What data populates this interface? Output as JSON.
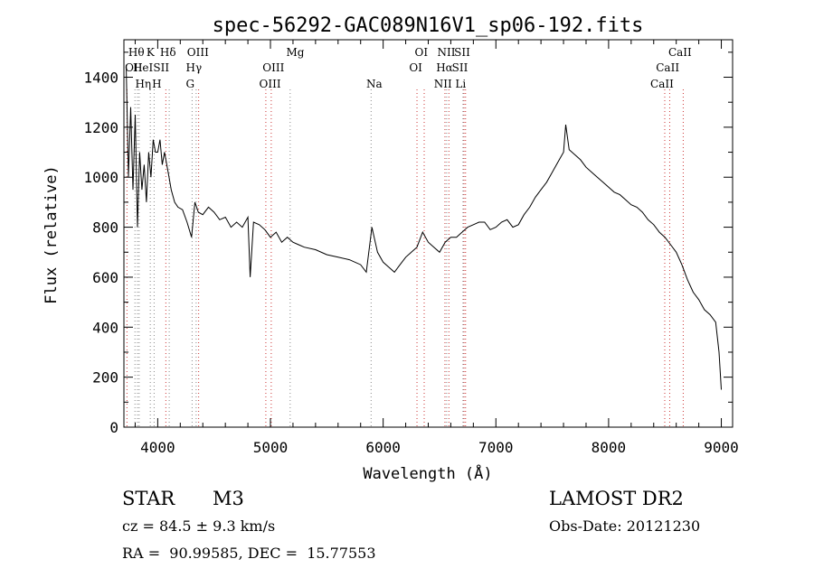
{
  "chart_data": {
    "type": "line",
    "title": "spec-56292-GAC089N16V1_sp06-192.fits",
    "xlabel": "Wavelength (Å)",
    "ylabel": "Flux (relative)",
    "xlim": [
      3700,
      9100
    ],
    "ylim": [
      0,
      1550
    ],
    "xticks": [
      4000,
      5000,
      6000,
      7000,
      8000,
      9000
    ],
    "yticks": [
      0,
      200,
      400,
      600,
      800,
      1000,
      1200,
      1400
    ],
    "grid": false,
    "line_color": "#000000",
    "series": [
      {
        "x": [
          3720,
          3740,
          3760,
          3780,
          3800,
          3820,
          3840,
          3860,
          3880,
          3900,
          3920,
          3940,
          3960,
          3980,
          4000,
          4020,
          4040,
          4060,
          4080,
          4100,
          4120,
          4150,
          4180,
          4220,
          4260,
          4300,
          4330,
          4360,
          4400,
          4450,
          4500,
          4550,
          4600,
          4650,
          4700,
          4750,
          4800,
          4820,
          4850,
          4900,
          4950,
          5000,
          5050,
          5100,
          5150,
          5200,
          5250,
          5300,
          5400,
          5500,
          5600,
          5700,
          5800,
          5850,
          5900,
          5950,
          6000,
          6050,
          6100,
          6150,
          6200,
          6250,
          6300,
          6350,
          6400,
          6450,
          6500,
          6550,
          6600,
          6650,
          6700,
          6750,
          6800,
          6850,
          6900,
          6950,
          7000,
          7050,
          7100,
          7150,
          7200,
          7250,
          7300,
          7350,
          7400,
          7450,
          7500,
          7550,
          7600,
          7620,
          7650,
          7700,
          7750,
          7800,
          7850,
          7900,
          7950,
          8000,
          8050,
          8100,
          8150,
          8200,
          8250,
          8300,
          8350,
          8400,
          8450,
          8500,
          8550,
          8600,
          8650,
          8700,
          8750,
          8800,
          8850,
          8900,
          8950,
          8980,
          9000
        ],
        "y": [
          1450,
          1000,
          1280,
          950,
          1250,
          800,
          1100,
          950,
          1050,
          900,
          1100,
          1000,
          1150,
          1100,
          1100,
          1150,
          1050,
          1100,
          1050,
          1000,
          950,
          900,
          880,
          870,
          820,
          760,
          900,
          860,
          850,
          880,
          860,
          830,
          840,
          800,
          820,
          800,
          840,
          600,
          820,
          810,
          790,
          760,
          780,
          740,
          760,
          740,
          730,
          720,
          710,
          690,
          680,
          670,
          650,
          620,
          800,
          700,
          660,
          640,
          620,
          650,
          680,
          700,
          720,
          780,
          740,
          720,
          700,
          740,
          760,
          760,
          780,
          800,
          810,
          820,
          820,
          790,
          800,
          820,
          830,
          800,
          810,
          850,
          880,
          920,
          950,
          980,
          1020,
          1060,
          1100,
          1210,
          1110,
          1090,
          1070,
          1040,
          1020,
          1000,
          980,
          960,
          940,
          930,
          910,
          890,
          880,
          860,
          830,
          810,
          780,
          760,
          730,
          700,
          650,
          590,
          540,
          510,
          470,
          450,
          420,
          300,
          150
        ]
      }
    ],
    "line_markers": [
      {
        "label": "Hθ",
        "x": 3798,
        "row": 1,
        "color": "#888888",
        "label_x": 3739
      },
      {
        "label": "OII",
        "x": 3727,
        "row": 2,
        "color": "#cc3333",
        "label_x": 3709
      },
      {
        "label": "HeI",
        "x": 3820,
        "row": 2,
        "color": "#888888",
        "label_x": 3780
      },
      {
        "label": "Hη",
        "x": 3835,
        "row": 3,
        "color": "#888888",
        "label_x": 3800
      },
      {
        "label": "K",
        "x": 3934,
        "row": 1,
        "color": "#888888",
        "label_x": 3900
      },
      {
        "label": "H",
        "x": 3968,
        "row": 3,
        "color": "#888888",
        "label_x": 3950
      },
      {
        "label": "SII",
        "x": 4072,
        "row": 2,
        "color": "#cc3333",
        "label_x": 3960
      },
      {
        "label": "Hδ",
        "x": 4102,
        "row": 1,
        "color": "#888888",
        "label_x": 4020
      },
      {
        "label": "OIII",
        "x": 4363,
        "row": 1,
        "color": "#cc3333",
        "label_x": 4260
      },
      {
        "label": "Hγ",
        "x": 4341,
        "row": 2,
        "color": "#888888",
        "label_x": 4250
      },
      {
        "label": "G",
        "x": 4305,
        "row": 3,
        "color": "#888888",
        "label_x": 4250
      },
      {
        "label": "OIII",
        "x": 4959,
        "row": 2,
        "color": "#cc3333",
        "label_x": 4930
      },
      {
        "label": "OIII",
        "x": 5007,
        "row": 3,
        "color": "#cc3333",
        "label_x": 4900
      },
      {
        "label": "Mg",
        "x": 5175,
        "row": 1,
        "color": "#888888",
        "label_x": 5140
      },
      {
        "label": "Na",
        "x": 5893,
        "row": 3,
        "color": "#888888",
        "label_x": 5850
      },
      {
        "label": "OI",
        "x": 6300,
        "row": 2,
        "color": "#cc3333",
        "label_x": 6230
      },
      {
        "label": "OI",
        "x": 6364,
        "row": 1,
        "color": "#cc3333",
        "label_x": 6280
      },
      {
        "label": "NII",
        "x": 6548,
        "row": 3,
        "color": "#cc3333",
        "label_x": 6450
      },
      {
        "label": "NII",
        "x": 6583,
        "row": 1,
        "color": "#cc3333",
        "label_x": 6480
      },
      {
        "label": "Hα",
        "x": 6563,
        "row": 2,
        "color": "#888888",
        "label_x": 6470
      },
      {
        "label": "SII",
        "x": 6717,
        "row": 1,
        "color": "#cc3333",
        "label_x": 6630
      },
      {
        "label": "SII",
        "x": 6731,
        "row": 2,
        "color": "#cc3333",
        "label_x": 6610
      },
      {
        "label": "Li",
        "x": 6708,
        "row": 3,
        "color": "#888888",
        "label_x": 6640
      },
      {
        "label": "CaII",
        "x": 8498,
        "row": 3,
        "color": "#cc3333",
        "label_x": 8370
      },
      {
        "label": "CaII",
        "x": 8542,
        "row": 2,
        "color": "#cc3333",
        "label_x": 8420
      },
      {
        "label": "CaII",
        "x": 8662,
        "row": 1,
        "color": "#cc3333",
        "label_x": 8530
      }
    ]
  },
  "info": {
    "class": "STAR",
    "subclass": "M3",
    "cz": "cz = 84.5 ± 9.3 km/s",
    "coords": "RA =  90.99585, DEC =  15.77553",
    "survey": "LAMOST DR2",
    "obs_date": "Obs-Date: 20121230"
  }
}
